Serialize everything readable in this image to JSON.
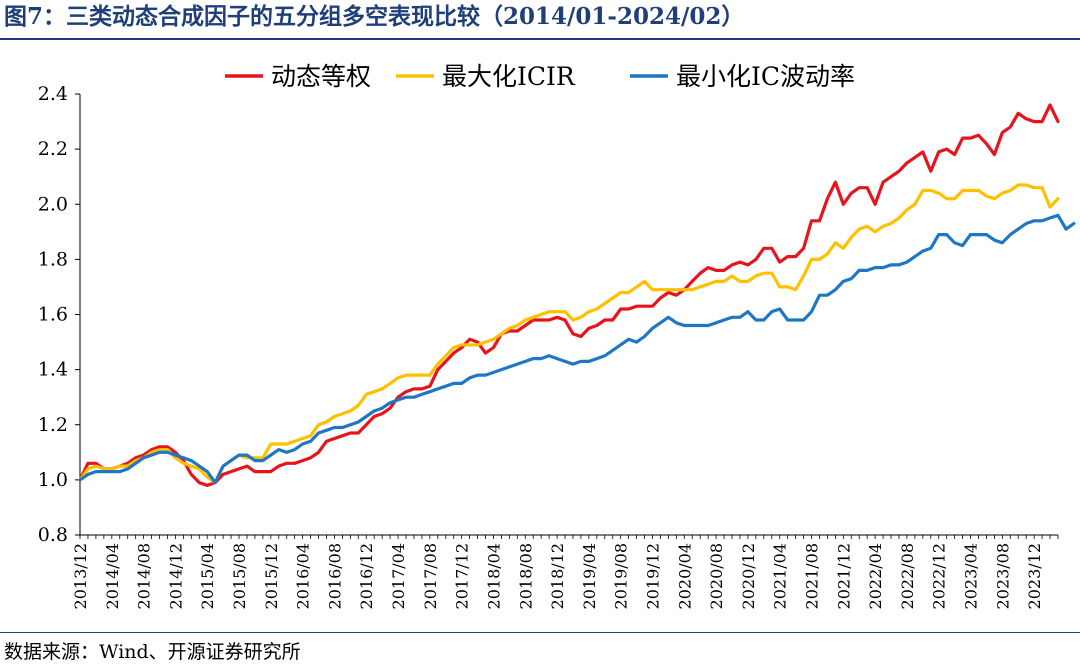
{
  "figure": {
    "title": "图7：三类动态合成因子的五分组多空表现比较（2014/01-2024/02）",
    "source": "数据来源：Wind、开源证券研究所"
  },
  "chart_data": {
    "type": "line",
    "title": "",
    "xlabel": "",
    "ylabel": "",
    "ylim": [
      0.8,
      2.4
    ],
    "yticks": [
      0.8,
      1.0,
      1.2,
      1.4,
      1.6,
      1.8,
      2.0,
      2.2,
      2.4
    ],
    "ytick_labels": [
      "0.8",
      "1.0",
      "1.2",
      "1.4",
      "1.6",
      "1.8",
      "2.0",
      "2.2",
      "2.4"
    ],
    "x_start": "2013/12",
    "x_end": "2024/02",
    "x_tick_labels": [
      "2013/12",
      "2014/04",
      "2014/08",
      "2014/12",
      "2015/04",
      "2015/08",
      "2015/12",
      "2016/04",
      "2016/08",
      "2016/12",
      "2017/04",
      "2017/08",
      "2017/12",
      "2018/04",
      "2018/08",
      "2018/12",
      "2019/04",
      "2019/08",
      "2019/12",
      "2020/04",
      "2020/08",
      "2020/12",
      "2021/04",
      "2021/08",
      "2021/12",
      "2022/04",
      "2022/08",
      "2022/12",
      "2023/04",
      "2023/08",
      "2023/12"
    ],
    "legend_position": "top",
    "grid": false,
    "series": [
      {
        "name": "动态等权",
        "color": "#e8141c",
        "values": [
          1.0,
          1.06,
          1.06,
          1.04,
          1.04,
          1.05,
          1.06,
          1.08,
          1.09,
          1.11,
          1.12,
          1.12,
          1.1,
          1.07,
          1.02,
          0.99,
          0.98,
          0.99,
          1.02,
          1.03,
          1.04,
          1.05,
          1.03,
          1.03,
          1.03,
          1.05,
          1.06,
          1.06,
          1.07,
          1.08,
          1.1,
          1.14,
          1.15,
          1.16,
          1.17,
          1.17,
          1.2,
          1.23,
          1.24,
          1.26,
          1.3,
          1.32,
          1.33,
          1.33,
          1.34,
          1.4,
          1.43,
          1.46,
          1.48,
          1.51,
          1.5,
          1.46,
          1.48,
          1.53,
          1.54,
          1.54,
          1.56,
          1.58,
          1.58,
          1.58,
          1.59,
          1.58,
          1.53,
          1.52,
          1.55,
          1.56,
          1.58,
          1.58,
          1.62,
          1.62,
          1.63,
          1.63,
          1.63,
          1.66,
          1.68,
          1.67,
          1.69,
          1.72,
          1.75,
          1.77,
          1.76,
          1.76,
          1.78,
          1.79,
          1.78,
          1.8,
          1.84,
          1.84,
          1.79,
          1.81,
          1.81,
          1.84,
          1.94,
          1.94,
          2.02,
          2.08,
          2.0,
          2.04,
          2.06,
          2.06,
          2.0,
          2.08,
          2.1,
          2.12,
          2.15,
          2.17,
          2.19,
          2.12,
          2.19,
          2.2,
          2.18,
          2.24,
          2.24,
          2.25,
          2.22,
          2.18,
          2.26,
          2.28,
          2.33,
          2.31,
          2.3,
          2.3,
          2.36,
          2.3
        ]
      },
      {
        "name": "最大化ICIR",
        "color": "#ffc000",
        "values": [
          1.0,
          1.04,
          1.05,
          1.04,
          1.04,
          1.05,
          1.05,
          1.07,
          1.08,
          1.1,
          1.11,
          1.11,
          1.08,
          1.06,
          1.05,
          1.04,
          1.01,
          0.99,
          1.05,
          1.07,
          1.09,
          1.08,
          1.08,
          1.08,
          1.13,
          1.13,
          1.13,
          1.14,
          1.15,
          1.16,
          1.2,
          1.21,
          1.23,
          1.24,
          1.25,
          1.27,
          1.31,
          1.32,
          1.33,
          1.35,
          1.37,
          1.38,
          1.38,
          1.38,
          1.38,
          1.42,
          1.45,
          1.48,
          1.49,
          1.49,
          1.49,
          1.5,
          1.51,
          1.53,
          1.55,
          1.56,
          1.58,
          1.59,
          1.6,
          1.61,
          1.61,
          1.61,
          1.58,
          1.59,
          1.61,
          1.62,
          1.64,
          1.66,
          1.68,
          1.68,
          1.7,
          1.72,
          1.69,
          1.69,
          1.69,
          1.69,
          1.69,
          1.69,
          1.7,
          1.71,
          1.72,
          1.72,
          1.74,
          1.72,
          1.72,
          1.74,
          1.75,
          1.75,
          1.7,
          1.7,
          1.69,
          1.74,
          1.8,
          1.8,
          1.82,
          1.86,
          1.84,
          1.88,
          1.91,
          1.92,
          1.9,
          1.92,
          1.93,
          1.95,
          1.98,
          2.0,
          2.05,
          2.05,
          2.04,
          2.02,
          2.02,
          2.05,
          2.05,
          2.05,
          2.03,
          2.02,
          2.04,
          2.05,
          2.07,
          2.07,
          2.06,
          2.06,
          1.99,
          2.02
        ]
      },
      {
        "name": "最小化IC波动率",
        "color": "#1f77c4",
        "values": [
          1.0,
          1.02,
          1.03,
          1.03,
          1.03,
          1.03,
          1.04,
          1.06,
          1.08,
          1.09,
          1.1,
          1.1,
          1.09,
          1.08,
          1.07,
          1.05,
          1.03,
          0.99,
          1.05,
          1.07,
          1.09,
          1.09,
          1.07,
          1.07,
          1.09,
          1.11,
          1.1,
          1.11,
          1.13,
          1.14,
          1.17,
          1.18,
          1.19,
          1.19,
          1.2,
          1.21,
          1.23,
          1.25,
          1.26,
          1.28,
          1.29,
          1.3,
          1.3,
          1.31,
          1.32,
          1.33,
          1.34,
          1.35,
          1.35,
          1.37,
          1.38,
          1.38,
          1.39,
          1.4,
          1.41,
          1.42,
          1.43,
          1.44,
          1.44,
          1.45,
          1.44,
          1.43,
          1.42,
          1.43,
          1.43,
          1.44,
          1.45,
          1.47,
          1.49,
          1.51,
          1.5,
          1.52,
          1.55,
          1.57,
          1.59,
          1.57,
          1.56,
          1.56,
          1.56,
          1.56,
          1.57,
          1.58,
          1.59,
          1.59,
          1.61,
          1.58,
          1.58,
          1.61,
          1.62,
          1.58,
          1.58,
          1.58,
          1.61,
          1.67,
          1.67,
          1.69,
          1.72,
          1.73,
          1.76,
          1.76,
          1.77,
          1.77,
          1.78,
          1.78,
          1.79,
          1.81,
          1.83,
          1.84,
          1.89,
          1.89,
          1.86,
          1.85,
          1.89,
          1.89,
          1.89,
          1.87,
          1.86,
          1.89,
          1.91,
          1.93,
          1.94,
          1.94,
          1.95,
          1.96,
          1.91,
          1.93
        ]
      }
    ]
  }
}
